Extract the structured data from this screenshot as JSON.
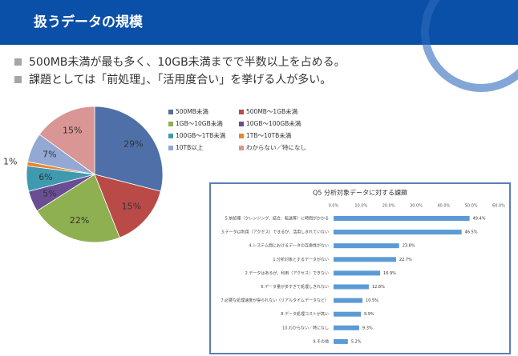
{
  "header": {
    "title": "扱うデータの規模"
  },
  "bullets": [
    "500MB未満が最も多く、10GB未満までで半数以上を占める。",
    "課題としては「前処理」、「活用度合い」を挙げる人が多い。"
  ],
  "chart_data": [
    {
      "type": "pie",
      "categories": [
        "500MB未満",
        "500MB～1GB未満",
        "1GB～10GB未満",
        "10GB～100GB未満",
        "100GB～1TB未満",
        "1TB～10TB未満",
        "10TB以上",
        "わからない／特になし"
      ],
      "values": [
        29,
        15,
        22,
        5,
        6,
        1,
        7,
        15
      ],
      "value_labels": [
        "29%",
        "15%",
        "22%",
        "5%",
        "6%",
        "1%",
        "7%",
        "15%"
      ],
      "colors": [
        "#4f6fa8",
        "#b94a48",
        "#8fb050",
        "#6a4e94",
        "#3f9ab0",
        "#e8872e",
        "#93a9d4",
        "#d99694"
      ]
    },
    {
      "type": "bar",
      "title": "Q5 分析対象データに対する課題",
      "categories": [
        "5.前処理（クレンジング、結合、転送等）に時間がかかる",
        "3.データは利用（アクセス）できるが、活用しきれていない",
        "4.システム間におけるデータの互換性がない",
        "1.分析対象とするデータがない",
        "2.データはあるが、利用（アクセス）できない",
        "6.データ量が多すぎて処理しきれない",
        "7.必要な処理速度が得られない（リアルタイムデータなど）",
        "8.データ処理コストが高い",
        "10.わからない／特になし",
        "9.その他"
      ],
      "values": [
        49.4,
        46.5,
        23.8,
        22.7,
        16.9,
        12.8,
        10.5,
        9.9,
        9.3,
        5.2
      ],
      "value_labels": [
        "49.4%",
        "46.5%",
        "23.8%",
        "22.7%",
        "16.9%",
        "12.8%",
        "10.5%",
        "9.9%",
        "9.3%",
        "5.2%"
      ],
      "color": "#5b9bd5",
      "xlim": [
        0,
        60
      ],
      "xticks": [
        {
          "value": 0,
          "label": "0.0%"
        },
        {
          "value": 10,
          "label": "10.0%"
        },
        {
          "value": 20,
          "label": "20.0%"
        },
        {
          "value": 30,
          "label": "30.0%"
        },
        {
          "value": 40,
          "label": "40.0%"
        },
        {
          "value": 50,
          "label": "50.0%"
        },
        {
          "value": 60,
          "label": "60.0%"
        }
      ]
    }
  ]
}
